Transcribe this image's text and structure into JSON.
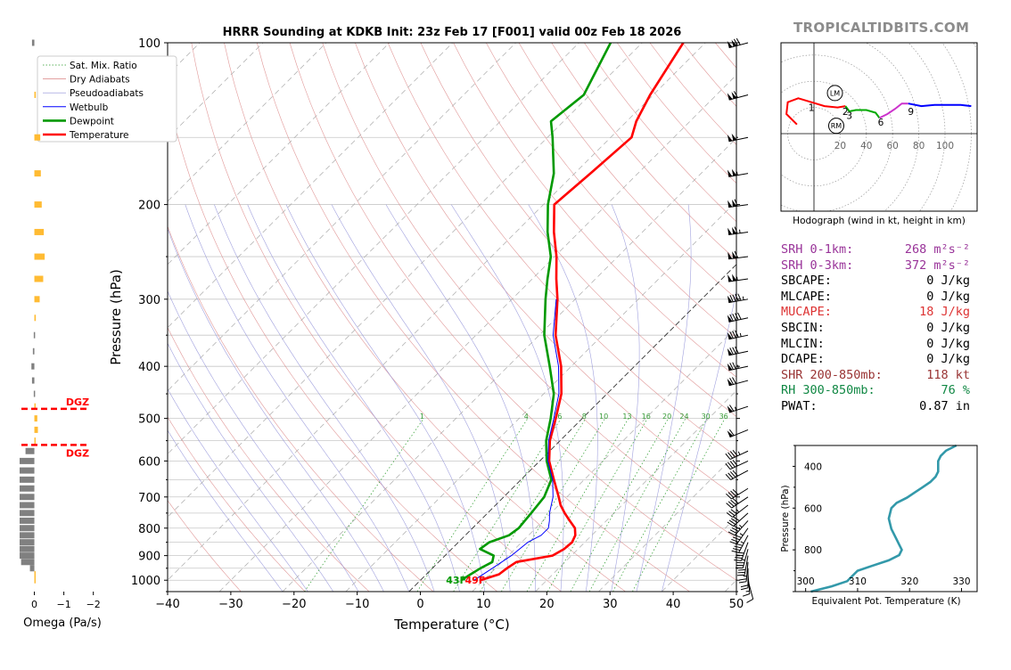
{
  "chart_data": [
    {
      "type": "line",
      "subtype": "skew-T log-P sounding",
      "title": "HRRR Sounding at KDKB Init: 23z Feb 17 [F001] valid 00z Feb 18 2026",
      "xlabel": "Temperature (°C)",
      "ylabel": "Pressure (hPa)",
      "xlim": [
        -40,
        50
      ],
      "ylim": [
        1050,
        100
      ],
      "y_scale": "log",
      "x_ticks": [
        "−40",
        "−30",
        "−20",
        "−10",
        "0",
        "10",
        "20",
        "30",
        "40",
        "50"
      ],
      "y_ticks": [
        "100",
        "200",
        "300",
        "400",
        "500",
        "600",
        "700",
        "800",
        "900",
        "1000"
      ],
      "legend": {
        "placement": "upper-left",
        "entries": [
          "Sat. Mix. Ratio",
          "Dry Adiabats",
          "Pseudoadiabats",
          "Wetbulb",
          "Dewpoint",
          "Temperature"
        ]
      },
      "mixing_ratio_labels": [
        "1",
        "4",
        "6",
        "8",
        "10",
        "13",
        "16",
        "20",
        "24",
        "30",
        "36"
      ],
      "surface_labels": {
        "dewpoint": "43F",
        "temperature": "49F"
      },
      "series": [
        {
          "name": "Temperature",
          "color": "#ff0000",
          "points": [
            [
              1000,
              9.5
            ],
            [
              975,
              11.5
            ],
            [
              950,
              11.8
            ],
            [
              925,
              12.3
            ],
            [
              900,
              17
            ],
            [
              875,
              17.8
            ],
            [
              850,
              18
            ],
            [
              825,
              17.4
            ],
            [
              800,
              16.2
            ],
            [
              775,
              14.2
            ],
            [
              750,
              12.2
            ],
            [
              725,
              10.3
            ],
            [
              700,
              8.7
            ],
            [
              650,
              5.2
            ],
            [
              600,
              1.5
            ],
            [
              550,
              -1.6
            ],
            [
              500,
              -4.2
            ],
            [
              450,
              -7.2
            ],
            [
              400,
              -11.6
            ],
            [
              350,
              -17.4
            ],
            [
              300,
              -22.8
            ],
            [
              275,
              -26.2
            ],
            [
              250,
              -29.7
            ],
            [
              225,
              -34
            ],
            [
              200,
              -38.3
            ],
            [
              175,
              -37.5
            ],
            [
              150,
              -36.7
            ],
            [
              140,
              -38.5
            ],
            [
              125,
              -40.5
            ],
            [
              100,
              -43.5
            ]
          ]
        },
        {
          "name": "Dewpoint",
          "color": "#009900",
          "points": [
            [
              1000,
              6.5
            ],
            [
              975,
              7
            ],
            [
              950,
              7.6
            ],
            [
              925,
              8.5
            ],
            [
              900,
              7.7
            ],
            [
              875,
              4.5
            ],
            [
              850,
              4.9
            ],
            [
              825,
              6.9
            ],
            [
              800,
              7.3
            ],
            [
              775,
              7.1
            ],
            [
              750,
              6.9
            ],
            [
              700,
              6.4
            ],
            [
              650,
              4.8
            ],
            [
              600,
              1.1
            ],
            [
              550,
              -2.2
            ],
            [
              500,
              -5
            ],
            [
              450,
              -8.4
            ],
            [
              400,
              -13.4
            ],
            [
              350,
              -19.2
            ],
            [
              300,
              -24.7
            ],
            [
              275,
              -27.6
            ],
            [
              250,
              -30.6
            ],
            [
              225,
              -35
            ],
            [
              200,
              -39.3
            ],
            [
              175,
              -43.3
            ],
            [
              150,
              -49.2
            ],
            [
              140,
              -52
            ],
            [
              125,
              -51
            ],
            [
              100,
              -55
            ]
          ]
        },
        {
          "name": "Wetbulb",
          "color": "#0000ff",
          "points": [
            [
              1000,
              8.5
            ],
            [
              950,
              9.5
            ],
            [
              900,
              10.5
            ],
            [
              850,
              11
            ],
            [
              825,
              12
            ],
            [
              800,
              12
            ],
            [
              775,
              11
            ],
            [
              750,
              9.8
            ],
            [
              700,
              7.8
            ],
            [
              650,
              5
            ],
            [
              600,
              1.3
            ],
            [
              550,
              -1.8
            ],
            [
              500,
              -4.5
            ],
            [
              450,
              -7.6
            ],
            [
              400,
              -12
            ],
            [
              350,
              -17.8
            ],
            [
              300,
              -23
            ]
          ]
        }
      ]
    },
    {
      "type": "line",
      "subtype": "hodograph",
      "xlabel": "Hodograph (wind in kt, height in km)",
      "ring_labels": [
        "20",
        "40",
        "60",
        "80",
        "100"
      ],
      "markers": [
        "LM",
        "RM"
      ],
      "height_labels": [
        {
          "text": "1",
          "u": -2,
          "v": 20
        },
        {
          "text": "2",
          "u": 24,
          "v": 17
        },
        {
          "text": "3",
          "u": 27,
          "v": 14
        },
        {
          "text": "6",
          "u": 51,
          "v": 9
        },
        {
          "text": "9",
          "u": 74,
          "v": 17
        }
      ],
      "segments": [
        {
          "color": "#ff0000",
          "points": [
            [
              -13,
              7
            ],
            [
              -21,
              15
            ],
            [
              -20,
              24
            ],
            [
              -12,
              27
            ],
            [
              -2,
              24
            ],
            [
              8,
              21
            ],
            [
              18,
              20
            ],
            [
              24,
              21
            ]
          ]
        },
        {
          "color": "#00aa00",
          "points": [
            [
              24,
              21
            ],
            [
              27,
              17
            ],
            [
              32,
              18
            ],
            [
              40,
              18
            ],
            [
              47,
              16
            ],
            [
              50,
              12
            ]
          ]
        },
        {
          "color": "#cc33cc",
          "points": [
            [
              50,
              12
            ],
            [
              56,
              15
            ],
            [
              62,
              19
            ],
            [
              67,
              23
            ],
            [
              72,
              23
            ]
          ]
        },
        {
          "color": "#0000ff",
          "points": [
            [
              72,
              23
            ],
            [
              82,
              21
            ],
            [
              92,
              22
            ],
            [
              102,
              22
            ],
            [
              112,
              22
            ],
            [
              120,
              21
            ]
          ]
        }
      ]
    },
    {
      "type": "line",
      "subtype": "theta-e profile",
      "xlabel": "Equivalent Pot. Temperature (K)",
      "ylabel": "Pressure (hPa)",
      "xlim": [
        298,
        333
      ],
      "ylim": [
        1000,
        300
      ],
      "x_ticks": [
        "300",
        "310",
        "320",
        "330"
      ],
      "y_ticks": [
        "400",
        "600",
        "800"
      ],
      "color": "#3399aa",
      "points": [
        [
          1000,
          301
        ],
        [
          975,
          305
        ],
        [
          950,
          308
        ],
        [
          925,
          309
        ],
        [
          900,
          310
        ],
        [
          875,
          313
        ],
        [
          850,
          316
        ],
        [
          825,
          318
        ],
        [
          800,
          318.5
        ],
        [
          775,
          318
        ],
        [
          750,
          317.5
        ],
        [
          700,
          316.5
        ],
        [
          650,
          316
        ],
        [
          600,
          316.5
        ],
        [
          575,
          317.5
        ],
        [
          550,
          319.5
        ],
        [
          525,
          321
        ],
        [
          500,
          322.5
        ],
        [
          475,
          324
        ],
        [
          450,
          325
        ],
        [
          425,
          325.5
        ],
        [
          400,
          325.5
        ],
        [
          375,
          325.5
        ],
        [
          350,
          326
        ],
        [
          325,
          327
        ],
        [
          300,
          329
        ]
      ]
    },
    {
      "type": "bar",
      "subtype": "omega profile",
      "xlabel": "Omega (Pa/s)",
      "x_ticks": [
        "0",
        "−1",
        "−2"
      ],
      "xlim": [
        0.5,
        -2.1
      ],
      "dgz_label": "DGZ",
      "dgz_bounds": [
        480,
        560
      ],
      "levels": [
        100,
        125,
        150,
        175,
        200,
        225,
        250,
        275,
        300,
        325,
        350,
        375,
        400,
        425,
        450,
        475,
        500,
        525,
        550,
        575,
        600,
        625,
        650,
        675,
        700,
        725,
        750,
        775,
        800,
        825,
        850,
        875,
        900,
        925,
        950,
        975,
        1000
      ],
      "values": [
        0.08,
        -0.05,
        -0.2,
        -0.22,
        -0.25,
        -0.32,
        -0.35,
        -0.3,
        -0.18,
        -0.05,
        0.02,
        0.05,
        0.1,
        0.08,
        0.02,
        -0.03,
        -0.1,
        -0.12,
        -0.02,
        0.3,
        0.5,
        0.5,
        0.5,
        0.5,
        0.5,
        0.5,
        0.5,
        0.5,
        0.5,
        0.5,
        0.5,
        0.5,
        0.5,
        0.45,
        0.15,
        0.0,
        0.0
      ],
      "colors": {
        "positive": "#808080",
        "negative": "#ffbb33"
      }
    }
  ],
  "brand": "TROPICALTIDBITS.COM",
  "stats": [
    {
      "label": "SRH 0-1km:",
      "value": "268 m²s⁻²",
      "color": "#993399"
    },
    {
      "label": "SRH 0-3km:",
      "value": "372 m²s⁻²",
      "color": "#993399"
    },
    {
      "label": "SBCAPE:",
      "value": "0 J/kg",
      "color": "#000000"
    },
    {
      "label": "MLCAPE:",
      "value": "0 J/kg",
      "color": "#000000"
    },
    {
      "label": "MUCAPE:",
      "value": "18 J/kg",
      "color": "#dd3333"
    },
    {
      "label": "SBCIN:",
      "value": "0 J/kg",
      "color": "#000000"
    },
    {
      "label": "MLCIN:",
      "value": "0 J/kg",
      "color": "#000000"
    },
    {
      "label": "DCAPE:",
      "value": "0 J/kg",
      "color": "#000000"
    },
    {
      "label": "SHR 200-850mb:",
      "value": "118 kt",
      "color": "#993333"
    },
    {
      "label": "RH 300-850mb:",
      "value": "76 %",
      "color": "#118844"
    },
    {
      "label": "PWAT:",
      "value": "0.87 in",
      "color": "#000000"
    }
  ],
  "wind_barbs": [
    {
      "p": 100,
      "dir": 255,
      "spd": 120
    },
    {
      "p": 125,
      "dir": 255,
      "spd": 110
    },
    {
      "p": 150,
      "dir": 258,
      "spd": 100
    },
    {
      "p": 175,
      "dir": 260,
      "spd": 105
    },
    {
      "p": 200,
      "dir": 262,
      "spd": 110
    },
    {
      "p": 225,
      "dir": 262,
      "spd": 115
    },
    {
      "p": 250,
      "dir": 263,
      "spd": 110
    },
    {
      "p": 275,
      "dir": 262,
      "spd": 105
    },
    {
      "p": 300,
      "dir": 260,
      "spd": 95
    },
    {
      "p": 325,
      "dir": 258,
      "spd": 90
    },
    {
      "p": 350,
      "dir": 258,
      "spd": 85
    },
    {
      "p": 375,
      "dir": 258,
      "spd": 80
    },
    {
      "p": 400,
      "dir": 258,
      "spd": 75
    },
    {
      "p": 425,
      "dir": 255,
      "spd": 70
    },
    {
      "p": 475,
      "dir": 252,
      "spd": 65
    },
    {
      "p": 525,
      "dir": 248,
      "spd": 60
    },
    {
      "p": 575,
      "dir": 245,
      "spd": 45
    },
    {
      "p": 600,
      "dir": 245,
      "spd": 40
    },
    {
      "p": 625,
      "dir": 242,
      "spd": 40
    },
    {
      "p": 675,
      "dir": 238,
      "spd": 40
    },
    {
      "p": 700,
      "dir": 236,
      "spd": 40
    },
    {
      "p": 725,
      "dir": 232,
      "spd": 35
    },
    {
      "p": 750,
      "dir": 228,
      "spd": 40
    },
    {
      "p": 775,
      "dir": 222,
      "spd": 45
    },
    {
      "p": 800,
      "dir": 215,
      "spd": 45
    },
    {
      "p": 825,
      "dir": 208,
      "spd": 45
    },
    {
      "p": 850,
      "dir": 200,
      "spd": 40
    },
    {
      "p": 875,
      "dir": 195,
      "spd": 35
    },
    {
      "p": 900,
      "dir": 190,
      "spd": 30
    },
    {
      "p": 925,
      "dir": 185,
      "spd": 25
    },
    {
      "p": 950,
      "dir": 180,
      "spd": 20
    },
    {
      "p": 975,
      "dir": 175,
      "spd": 15
    },
    {
      "p": 1000,
      "dir": 165,
      "spd": 10
    }
  ]
}
